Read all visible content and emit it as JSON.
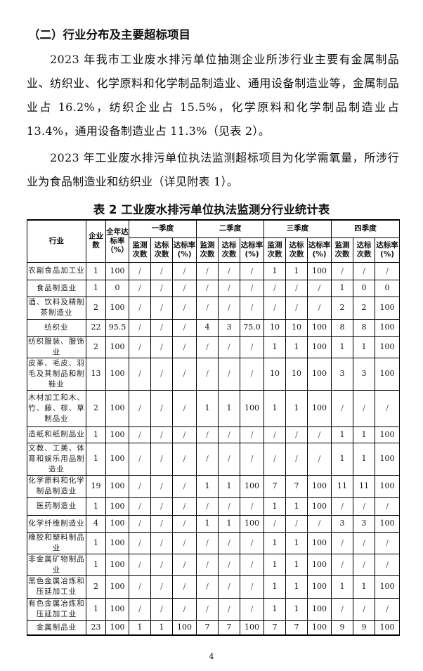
{
  "heading": "（二）行业分布及主要超标项目",
  "paragraphs": [
    "2023 年我市工业废水排污单位抽测企业所涉行业主要有金属制品业、纺织业、化学原料和化学制品制造业、通用设备制造业等，金属制品业占 16.2%，纺织企业占 15.5%，化学原料和化学制品制造业占 13.4%，通用设备制造业占 11.3%（见表 2）。",
    "2023 年工业废水排污单位执法监测超标项目为化学需氧量，所涉行业为食品制造业和纺织业（详见附表 1）。"
  ],
  "table": {
    "title": "表 2 工业废水排污单位执法监测分行业统计表",
    "headers": {
      "industry": "行业",
      "count": "企业数",
      "annual_rate": "全年达标率（%）",
      "quarters": [
        "一季度",
        "二季度",
        "三季度",
        "四季度"
      ],
      "sub": [
        "监测次数",
        "达标次数",
        "达标率(%)"
      ]
    },
    "rows": [
      {
        "industry": "农副食品加工业",
        "values": [
          "1",
          "100",
          "/",
          "/",
          "/",
          "/",
          "/",
          "/",
          "1",
          "1",
          "100",
          "/",
          "/",
          "/"
        ],
        "h": 25
      },
      {
        "industry": "食品制造业",
        "values": [
          "1",
          "0",
          "/",
          "/",
          "/",
          "/",
          "/",
          "/",
          "/",
          "/",
          "/",
          "1",
          "0",
          "0"
        ],
        "h": 24
      },
      {
        "industry": "酒、饮料及精制茶制造业",
        "values": [
          "2",
          "100",
          "/",
          "/",
          "/",
          "/",
          "/",
          "/",
          "/",
          "/",
          "/",
          "2",
          "2",
          "100"
        ],
        "h": 32
      },
      {
        "industry": "纺织业",
        "values": [
          "22",
          "95.5",
          "/",
          "/",
          "/",
          "4",
          "3",
          "75.0",
          "10",
          "10",
          "100",
          "8",
          "8",
          "100"
        ],
        "h": 24
      },
      {
        "industry": "纺织服装、服饰业",
        "values": [
          "2",
          "100",
          "/",
          "/",
          "/",
          "/",
          "/",
          "/",
          "1",
          "1",
          "100",
          "1",
          "1",
          "100"
        ],
        "h": 28
      },
      {
        "industry": "皮革、毛皮、羽毛及其制品和制鞋业",
        "values": [
          "13",
          "100",
          "/",
          "/",
          "/",
          "/",
          "/",
          "/",
          "10",
          "10",
          "100",
          "3",
          "3",
          "100"
        ],
        "h": 40
      },
      {
        "industry": "木材加工和木、竹、藤、棕、草制品业",
        "values": [
          "2",
          "100",
          "/",
          "/",
          "/",
          "1",
          "1",
          "100",
          "1",
          "1",
          "100",
          "/",
          "/",
          "/"
        ],
        "h": 52
      },
      {
        "industry": "造纸和纸制品业",
        "values": [
          "1",
          "100",
          "/",
          "/",
          "/",
          "/",
          "/",
          "/",
          "/",
          "/",
          "/",
          "1",
          "1",
          "100"
        ],
        "h": 23
      },
      {
        "industry": "文教、工美、体育和娱乐用品制造业",
        "values": [
          "1",
          "100",
          "/",
          "/",
          "/",
          "/",
          "/",
          "/",
          "/",
          "/",
          "/",
          "1",
          "1",
          "100"
        ],
        "h": 45
      },
      {
        "industry": "化学原料和化学制品制造业",
        "values": [
          "19",
          "100",
          "/",
          "/",
          "/",
          "1",
          "1",
          "100",
          "7",
          "7",
          "100",
          "11",
          "11",
          "100"
        ],
        "h": 32
      },
      {
        "industry": "医药制造业",
        "values": [
          "1",
          "100",
          "/",
          "/",
          "/",
          "/",
          "/",
          "/",
          "1",
          "1",
          "100",
          "/",
          "/",
          "/"
        ],
        "h": 25
      },
      {
        "industry": "化学纤维制造业",
        "values": [
          "4",
          "100",
          "/",
          "/",
          "/",
          "1",
          "1",
          "100",
          "/",
          "/",
          "/",
          "3",
          "3",
          "100"
        ],
        "h": 24
      },
      {
        "industry": "橡胶和塑料制品业",
        "values": [
          "1",
          "100",
          "/",
          "/",
          "/",
          "/",
          "/",
          "/",
          "1",
          "1",
          "100",
          "/",
          "/",
          "/"
        ],
        "h": 31
      },
      {
        "industry": "非金属矿物制品业",
        "values": [
          "1",
          "100",
          "/",
          "/",
          "/",
          "/",
          "/",
          "/",
          "1",
          "1",
          "100",
          "/",
          "/",
          "/"
        ],
        "h": 31
      },
      {
        "industry": "黑色金属冶炼和压延加工业",
        "values": [
          "2",
          "100",
          "/",
          "/",
          "/",
          "/",
          "/",
          "/",
          "1",
          "1",
          "100",
          "1",
          "1",
          "100"
        ],
        "h": 32
      },
      {
        "industry": "有色金属冶炼和压延加工业",
        "values": [
          "1",
          "100",
          "/",
          "/",
          "/",
          "/",
          "/",
          "/",
          "1",
          "1",
          "100",
          "/",
          "/",
          "/"
        ],
        "h": 32
      },
      {
        "industry": "金属制品业",
        "values": [
          "23",
          "100",
          "1",
          "1",
          "100",
          "7",
          "7",
          "100",
          "7",
          "7",
          "100",
          "9",
          "9",
          "100"
        ],
        "h": 21
      }
    ]
  },
  "page_number": "4"
}
